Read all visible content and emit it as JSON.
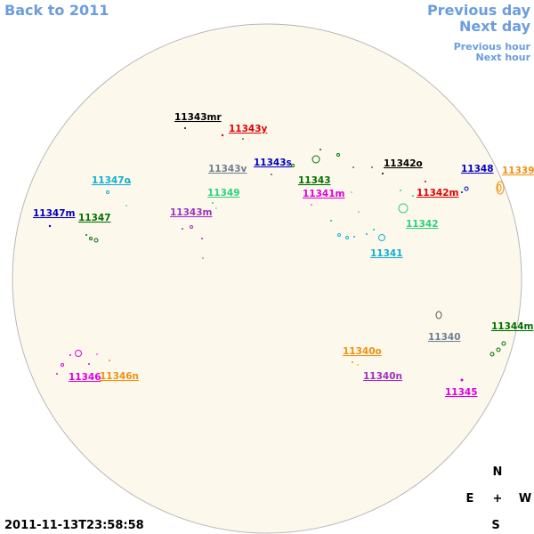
{
  "header": {
    "back": "Back to 2011",
    "previous_day": "Previous day",
    "next_day": "Next day",
    "previous_hour": "Previous hour",
    "next_hour": "Next hour"
  },
  "regions": [
    {
      "label": "11343mr",
      "color": "#000000"
    },
    {
      "label": "11343y",
      "color": "#e00000"
    },
    {
      "label": "11343s",
      "color": "#0000c0"
    },
    {
      "label": "11343v",
      "color": "#708090"
    },
    {
      "label": "11342o",
      "color": "#000000"
    },
    {
      "label": "11348",
      "color": "#0000c0"
    },
    {
      "label": "11339",
      "color": "#f09010"
    },
    {
      "label": "11347o",
      "color": "#10b0d0"
    },
    {
      "label": "11343",
      "color": "#007000"
    },
    {
      "label": "11349",
      "color": "#30d080"
    },
    {
      "label": "11341m",
      "color": "#e000e0"
    },
    {
      "label": "11342m",
      "color": "#e00000"
    },
    {
      "label": "11347m",
      "color": "#0000c0"
    },
    {
      "label": "11347",
      "color": "#007000"
    },
    {
      "label": "11343m",
      "color": "#a030c0"
    },
    {
      "label": "11342",
      "color": "#30d080"
    },
    {
      "label": "11341",
      "color": "#10b0d0"
    },
    {
      "label": "11340",
      "color": "#708090"
    },
    {
      "label": "11344m",
      "color": "#007000"
    },
    {
      "label": "11340o",
      "color": "#f09010"
    },
    {
      "label": "11346",
      "color": "#e000e0"
    },
    {
      "label": "11346n",
      "color": "#f09010"
    },
    {
      "label": "11340n",
      "color": "#a030c0"
    },
    {
      "label": "11345",
      "color": "#e000e0"
    }
  ],
  "compass": {
    "north": "N",
    "east": "E",
    "center": "+",
    "west": "W",
    "south": "S"
  },
  "timestamp": "2011-11-13T23:58:58"
}
